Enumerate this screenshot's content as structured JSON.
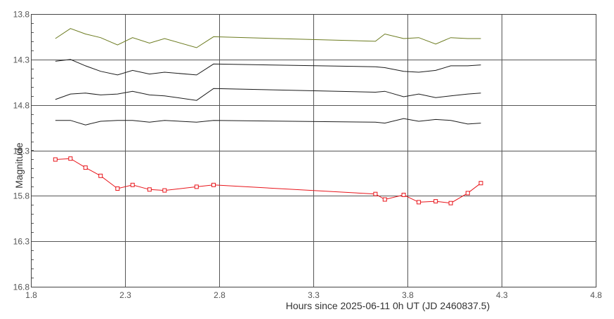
{
  "chart_data": {
    "type": "line",
    "xlabel": "Hours since 2025-06-11 0h UT (JD 2460837.5)",
    "ylabel": "Magnitude",
    "xlim": [
      1.8,
      4.8
    ],
    "ylim": [
      13.8,
      16.8
    ],
    "y_inverted": true,
    "grid": true,
    "x_ticks": [
      "1.8",
      "2.3",
      "2.8",
      "3.3",
      "3.8",
      "4.3",
      "4.8"
    ],
    "y_ticks": [
      "13.8",
      "14.3",
      "14.8",
      "15.3",
      "15.8",
      "16.3",
      "16.8"
    ],
    "series": [
      {
        "color": "#6b7a1e",
        "marker": "none",
        "x": [
          1.93,
          2.01,
          2.09,
          2.17,
          2.26,
          2.34,
          2.43,
          2.51,
          2.68,
          2.77,
          3.63,
          3.68,
          3.78,
          3.86,
          3.95,
          4.03,
          4.12,
          4.19
        ],
        "y": [
          14.07,
          13.96,
          14.02,
          14.06,
          14.14,
          14.06,
          14.12,
          14.07,
          14.17,
          14.05,
          14.1,
          14.02,
          14.07,
          14.06,
          14.13,
          14.06,
          14.07,
          14.07
        ]
      },
      {
        "color": "#1a1a1a",
        "marker": "none",
        "x": [
          1.93,
          2.01,
          2.09,
          2.17,
          2.26,
          2.34,
          2.43,
          2.51,
          2.68,
          2.77,
          3.63,
          3.68,
          3.78,
          3.86,
          3.95,
          4.03,
          4.12,
          4.19
        ],
        "y": [
          14.32,
          14.3,
          14.37,
          14.43,
          14.47,
          14.42,
          14.46,
          14.44,
          14.47,
          14.35,
          14.38,
          14.39,
          14.43,
          14.44,
          14.42,
          14.37,
          14.37,
          14.36
        ]
      },
      {
        "color": "#1a1a1a",
        "marker": "none",
        "x": [
          1.93,
          2.01,
          2.09,
          2.17,
          2.26,
          2.34,
          2.43,
          2.51,
          2.68,
          2.77,
          3.63,
          3.68,
          3.78,
          3.86,
          3.95,
          4.03,
          4.12,
          4.19
        ],
        "y": [
          14.74,
          14.68,
          14.67,
          14.69,
          14.68,
          14.65,
          14.69,
          14.7,
          14.75,
          14.62,
          14.66,
          14.65,
          14.71,
          14.68,
          14.72,
          14.7,
          14.68,
          14.67
        ]
      },
      {
        "color": "#1a1a1a",
        "marker": "none",
        "x": [
          1.93,
          2.01,
          2.09,
          2.17,
          2.26,
          2.34,
          2.43,
          2.51,
          2.68,
          2.77,
          3.63,
          3.68,
          3.78,
          3.86,
          3.95,
          4.03,
          4.12,
          4.19
        ],
        "y": [
          14.97,
          14.97,
          15.02,
          14.98,
          14.97,
          14.97,
          14.99,
          14.97,
          14.99,
          14.97,
          14.99,
          15.0,
          14.95,
          14.98,
          14.96,
          14.97,
          15.01,
          15.0
        ]
      },
      {
        "color": "#e8141a",
        "marker": "square",
        "x": [
          1.93,
          2.01,
          2.09,
          2.17,
          2.26,
          2.34,
          2.43,
          2.51,
          2.68,
          2.77,
          3.63,
          3.68,
          3.78,
          3.86,
          3.95,
          4.03,
          4.12,
          4.19
        ],
        "y": [
          15.4,
          15.39,
          15.49,
          15.58,
          15.72,
          15.68,
          15.73,
          15.74,
          15.7,
          15.68,
          15.78,
          15.84,
          15.79,
          15.87,
          15.86,
          15.88,
          15.77,
          15.66
        ]
      }
    ]
  }
}
